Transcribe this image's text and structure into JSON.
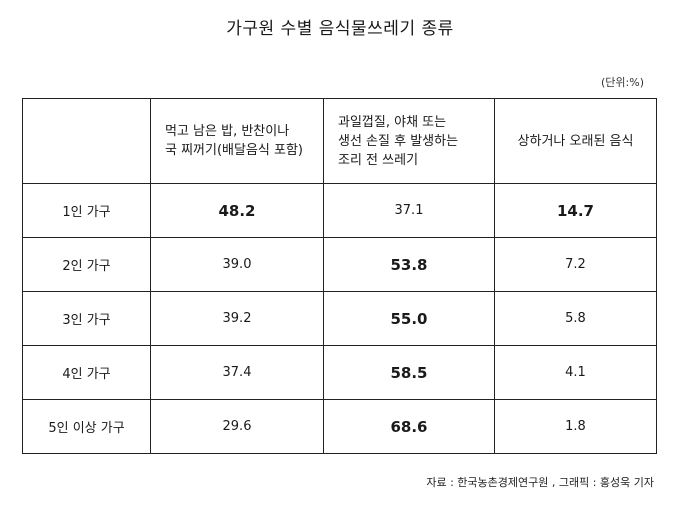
{
  "title": "가구원 수별 음식물쓰레기 종류",
  "unit": "(단위:%)",
  "source": "자료 : 한국농촌경제연구원 , 그래픽 : 홍성욱 기자",
  "chart_data": {
    "type": "table",
    "title": "가구원 수별 음식물쓰레기 종류",
    "unit": "(단위:%)",
    "columns": [
      [
        "먹고 남은 밥, 반찬이나",
        "국 찌꺼기(배달음식 포함)"
      ],
      [
        "과일껍질, 야채 또는",
        "생선 손질 후 발생하는",
        "조리 전 쓰레기"
      ],
      [
        "상하거나 오래된 음식"
      ]
    ],
    "rows": [
      {
        "label": "1인 가구",
        "values": [
          "48.2",
          "37.1",
          "14.7"
        ],
        "bold": [
          true,
          false,
          true
        ]
      },
      {
        "label": "2인 가구",
        "values": [
          "39.0",
          "53.8",
          "7.2"
        ],
        "bold": [
          false,
          true,
          false
        ]
      },
      {
        "label": "3인 가구",
        "values": [
          "39.2",
          "55.0",
          "5.8"
        ],
        "bold": [
          false,
          true,
          false
        ]
      },
      {
        "label": "4인 가구",
        "values": [
          "37.4",
          "58.5",
          "4.1"
        ],
        "bold": [
          false,
          true,
          false
        ]
      },
      {
        "label": "5인 이상 가구",
        "values": [
          "29.6",
          "68.6",
          "1.8"
        ],
        "bold": [
          false,
          true,
          false
        ]
      }
    ]
  }
}
